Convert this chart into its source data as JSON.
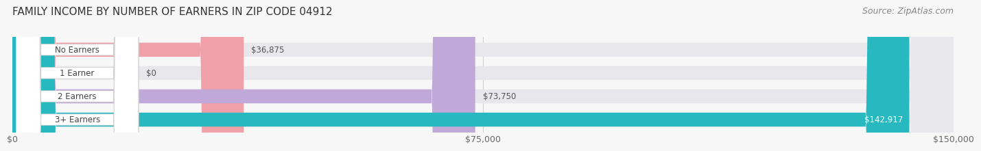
{
  "title": "FAMILY INCOME BY NUMBER OF EARNERS IN ZIP CODE 04912",
  "source": "Source: ZipAtlas.com",
  "categories": [
    "No Earners",
    "1 Earner",
    "2 Earners",
    "3+ Earners"
  ],
  "values": [
    36875,
    0,
    73750,
    142917
  ],
  "bar_colors": [
    "#f0a0a8",
    "#a8c0e8",
    "#c0a8d8",
    "#28b8c0"
  ],
  "bar_bg_color": "#e8e8ec",
  "max_value": 150000,
  "x_ticks": [
    0,
    75000,
    150000
  ],
  "x_tick_labels": [
    "$0",
    "$75,000",
    "$150,000"
  ],
  "value_labels": [
    "$36,875",
    "$0",
    "$73,750",
    "$142,917"
  ],
  "title_fontsize": 11,
  "source_fontsize": 9,
  "tick_fontsize": 9,
  "background_color": "#f7f7f7"
}
